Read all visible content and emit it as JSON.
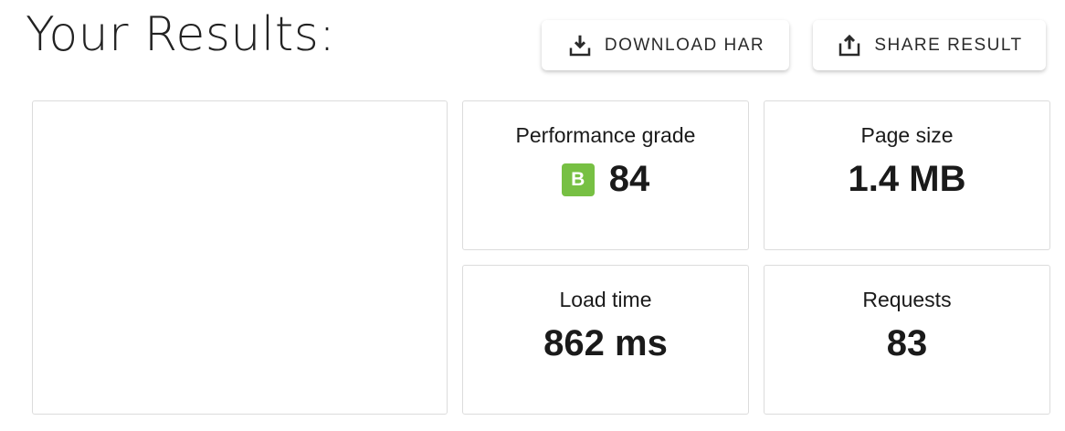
{
  "header": {
    "title": "Your Results:"
  },
  "toolbar": {
    "download_label": "DOWNLOAD HAR",
    "share_label": "SHARE RESULT"
  },
  "metrics": {
    "performance": {
      "label": "Performance grade",
      "grade": "B",
      "grade_color": "#77c043",
      "value": "84"
    },
    "page_size": {
      "label": "Page size",
      "value": "1.4 MB"
    },
    "load_time": {
      "label": "Load time",
      "value": "862 ms"
    },
    "requests": {
      "label": "Requests",
      "value": "83"
    }
  }
}
